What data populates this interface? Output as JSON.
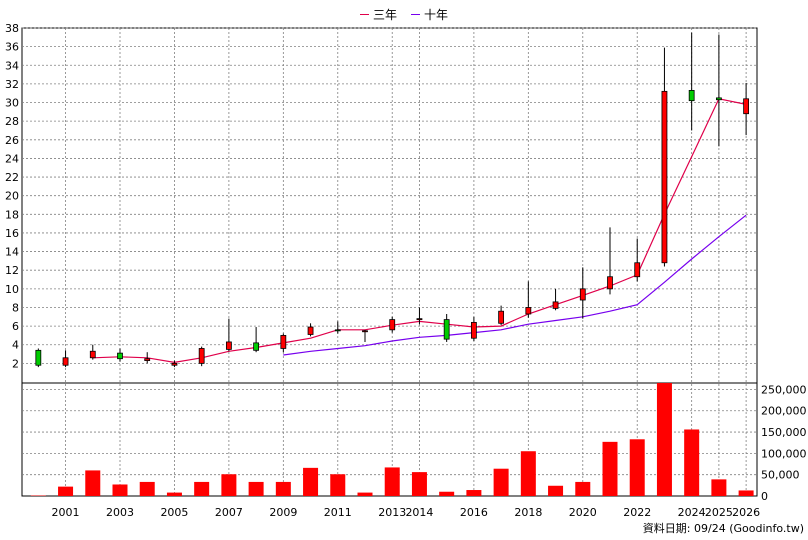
{
  "legend": {
    "series3_label": "三年",
    "series10_label": "十年"
  },
  "footer": {
    "text": "資料日期: 09/24  (Goodinfo.tw)"
  },
  "colors": {
    "up": "#ff0000",
    "down": "#00cc00",
    "three_year": "#e0004a",
    "ten_year": "#7700ee",
    "volume": "#ff0000",
    "grid": "#808080"
  },
  "chart_data": {
    "type": "bar",
    "price_axis": {
      "min": 0,
      "max": 38,
      "ticks": [
        2,
        4,
        6,
        8,
        10,
        12,
        14,
        16,
        18,
        20,
        22,
        24,
        26,
        28,
        30,
        32,
        34,
        36,
        38
      ]
    },
    "volume_axis": {
      "min": 0,
      "max": 250000,
      "ticks": [
        "0",
        "50,000",
        "100,000",
        "150,000",
        "200,000",
        "250,000"
      ],
      "tick_values": [
        0,
        50000,
        100000,
        150000,
        200000,
        250000
      ]
    },
    "x_tick_labels": [
      "2001",
      "2003",
      "2005",
      "2007",
      "2009",
      "2011",
      "2013",
      "2014",
      "2016",
      "2018",
      "2020",
      "2022",
      "2024",
      "2025",
      "2026"
    ],
    "candles": [
      {
        "year": 2000,
        "open": 1.8,
        "close": 3.4,
        "high": 3.6,
        "low": 1.6
      },
      {
        "year": 2001,
        "open": 2.6,
        "close": 1.8,
        "high": 3.4,
        "low": 1.6
      },
      {
        "year": 2002,
        "open": 3.3,
        "close": 2.6,
        "high": 4.0,
        "low": 2.4
      },
      {
        "year": 2003,
        "open": 2.5,
        "close": 3.1,
        "high": 3.6,
        "low": 2.2
      },
      {
        "year": 2004,
        "open": 2.5,
        "close": 2.3,
        "high": 3.2,
        "low": 2.0
      },
      {
        "year": 2005,
        "open": 2.0,
        "close": 1.8,
        "high": 2.3,
        "low": 1.6
      },
      {
        "year": 2006,
        "open": 3.6,
        "close": 2.0,
        "high": 3.8,
        "low": 1.7
      },
      {
        "year": 2007,
        "open": 4.3,
        "close": 3.5,
        "high": 6.8,
        "low": 3.3
      },
      {
        "year": 2008,
        "open": 3.4,
        "close": 4.2,
        "high": 5.9,
        "low": 3.2
      },
      {
        "year": 2009,
        "open": 5.0,
        "close": 3.6,
        "high": 5.2,
        "low": 3.2
      },
      {
        "year": 2010,
        "open": 5.9,
        "close": 5.1,
        "high": 6.3,
        "low": 4.9
      },
      {
        "year": 2011,
        "open": 5.5,
        "close": 5.6,
        "high": 6.5,
        "low": 5.2
      },
      {
        "year": 2012,
        "open": 5.5,
        "close": 5.4,
        "high": 5.6,
        "low": 4.3
      },
      {
        "year": 2013,
        "open": 6.7,
        "close": 5.6,
        "high": 7.0,
        "low": 5.3
      },
      {
        "year": 2014,
        "open": 6.8,
        "close": 6.7,
        "high": 8.0,
        "low": 6.2
      },
      {
        "year": 2015,
        "open": 4.6,
        "close": 6.7,
        "high": 7.3,
        "low": 4.3
      },
      {
        "year": 2016,
        "open": 6.4,
        "close": 4.7,
        "high": 7.0,
        "low": 4.4
      },
      {
        "year": 2017,
        "open": 7.6,
        "close": 6.3,
        "high": 8.2,
        "low": 6.1
      },
      {
        "year": 2018,
        "open": 8.0,
        "close": 7.3,
        "high": 10.8,
        "low": 6.9
      },
      {
        "year": 2019,
        "open": 8.6,
        "close": 7.9,
        "high": 10.0,
        "low": 7.7
      },
      {
        "year": 2020,
        "open": 10.0,
        "close": 8.8,
        "high": 12.3,
        "low": 6.8
      },
      {
        "year": 2021,
        "open": 11.3,
        "close": 10.0,
        "high": 16.6,
        "low": 9.4
      },
      {
        "year": 2022,
        "open": 12.8,
        "close": 11.3,
        "high": 15.4,
        "low": 10.8
      },
      {
        "year": 2023,
        "open": 31.2,
        "close": 12.8,
        "high": 35.9,
        "low": 12.4
      },
      {
        "year": 2024,
        "open": 30.2,
        "close": 31.3,
        "high": 37.5,
        "low": 27.0
      },
      {
        "year": 2025,
        "open": 30.3,
        "close": 30.5,
        "high": 37.3,
        "low": 25.3
      },
      {
        "year": 2026,
        "open": 30.4,
        "close": 28.8,
        "high": 32.1,
        "low": 26.5
      }
    ],
    "series": [
      {
        "name": "三年",
        "points": [
          [
            2002,
            2.6
          ],
          [
            2003,
            2.7
          ],
          [
            2004,
            2.6
          ],
          [
            2005,
            2.1
          ],
          [
            2006,
            2.6
          ],
          [
            2007,
            3.3
          ],
          [
            2008,
            3.7
          ],
          [
            2009,
            4.2
          ],
          [
            2010,
            4.7
          ],
          [
            2011,
            5.6
          ],
          [
            2012,
            5.6
          ],
          [
            2013,
            6.1
          ],
          [
            2014,
            6.5
          ],
          [
            2015,
            6.2
          ],
          [
            2016,
            5.9
          ],
          [
            2017,
            6.0
          ],
          [
            2018,
            7.3
          ],
          [
            2019,
            8.3
          ],
          [
            2020,
            9.3
          ],
          [
            2021,
            10.3
          ],
          [
            2022,
            11.5
          ],
          [
            2023,
            18.0
          ],
          [
            2024,
            24.2
          ],
          [
            2025,
            30.4
          ],
          [
            2026,
            29.8
          ]
        ]
      },
      {
        "name": "十年",
        "points": [
          [
            2009,
            2.9
          ],
          [
            2010,
            3.3
          ],
          [
            2011,
            3.6
          ],
          [
            2012,
            3.9
          ],
          [
            2013,
            4.4
          ],
          [
            2014,
            4.8
          ],
          [
            2015,
            5.0
          ],
          [
            2016,
            5.3
          ],
          [
            2017,
            5.6
          ],
          [
            2018,
            6.2
          ],
          [
            2019,
            6.6
          ],
          [
            2020,
            7.0
          ],
          [
            2021,
            7.6
          ],
          [
            2022,
            8.3
          ],
          [
            2023,
            10.7
          ],
          [
            2024,
            13.2
          ],
          [
            2025,
            15.6
          ],
          [
            2026,
            17.9
          ]
        ]
      }
    ],
    "volume": [
      {
        "year": 2000,
        "value": 1000
      },
      {
        "year": 2001,
        "value": 22000
      },
      {
        "year": 2002,
        "value": 60000
      },
      {
        "year": 2003,
        "value": 27000
      },
      {
        "year": 2004,
        "value": 33000
      },
      {
        "year": 2005,
        "value": 8000
      },
      {
        "year": 2006,
        "value": 33000
      },
      {
        "year": 2007,
        "value": 51000
      },
      {
        "year": 2008,
        "value": 33000
      },
      {
        "year": 2009,
        "value": 33000
      },
      {
        "year": 2010,
        "value": 66000
      },
      {
        "year": 2011,
        "value": 51000
      },
      {
        "year": 2012,
        "value": 8000
      },
      {
        "year": 2013,
        "value": 67000
      },
      {
        "year": 2014,
        "value": 56000
      },
      {
        "year": 2015,
        "value": 10000
      },
      {
        "year": 2016,
        "value": 14000
      },
      {
        "year": 2017,
        "value": 64000
      },
      {
        "year": 2018,
        "value": 105000
      },
      {
        "year": 2019,
        "value": 24000
      },
      {
        "year": 2020,
        "value": 33000
      },
      {
        "year": 2021,
        "value": 127000
      },
      {
        "year": 2022,
        "value": 133000
      },
      {
        "year": 2023,
        "value": 265000
      },
      {
        "year": 2024,
        "value": 156000
      },
      {
        "year": 2025,
        "value": 39000
      },
      {
        "year": 2026,
        "value": 13000
      }
    ]
  }
}
